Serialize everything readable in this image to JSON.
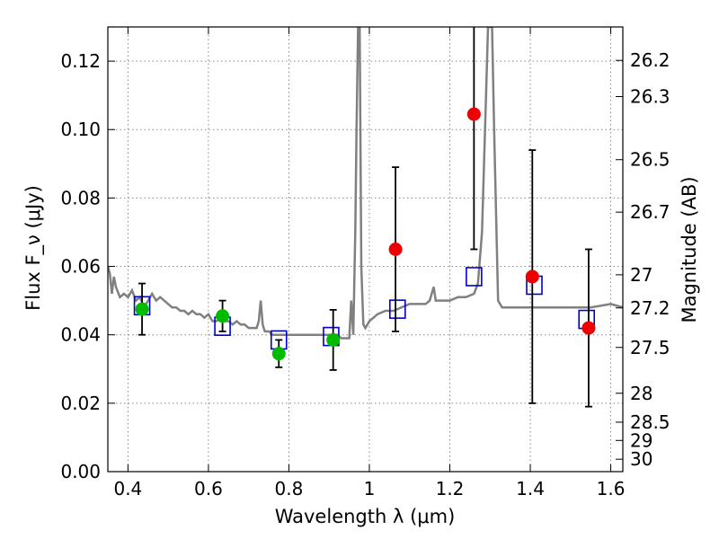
{
  "chart_data": {
    "type": "scatter",
    "xlabel": "Wavelength λ (μm)",
    "ylabel": "Flux F_ν (μJy)",
    "y2label": "Magnitude (AB)",
    "xlim": [
      0.35,
      1.63
    ],
    "ylim": [
      0.0,
      0.13
    ],
    "xticks": [
      0.4,
      0.6,
      0.8,
      1.0,
      1.2,
      1.4,
      1.6
    ],
    "xtick_labels": [
      "0.4",
      "0.6",
      "0.8",
      "1",
      "1.2",
      "1.4",
      "1.6"
    ],
    "yticks": [
      0.0,
      0.02,
      0.04,
      0.06,
      0.08,
      0.1,
      0.12
    ],
    "ytick_labels": [
      "0.00",
      "0.02",
      "0.04",
      "0.06",
      "0.08",
      "0.10",
      "0.12"
    ],
    "magnitude_ticks": [
      "26.2",
      "26.3",
      "26.5",
      "26.7",
      "27",
      "27.2",
      "27.5",
      "28",
      "28.5",
      "29",
      "30"
    ],
    "grid": true,
    "colors": {
      "template": "#808080",
      "model_box": "#0000cc",
      "optical_point": "#00bb00",
      "nir_point": "#ee0000",
      "errorbar": "#000000"
    },
    "template_spectrum": [
      [
        0.35,
        0.06
      ],
      [
        0.355,
        0.058
      ],
      [
        0.36,
        0.052
      ],
      [
        0.365,
        0.057
      ],
      [
        0.37,
        0.054
      ],
      [
        0.38,
        0.051
      ],
      [
        0.39,
        0.052
      ],
      [
        0.4,
        0.051
      ],
      [
        0.41,
        0.053
      ],
      [
        0.42,
        0.05
      ],
      [
        0.43,
        0.051
      ],
      [
        0.44,
        0.048
      ],
      [
        0.45,
        0.05
      ],
      [
        0.46,
        0.052
      ],
      [
        0.47,
        0.05
      ],
      [
        0.48,
        0.051
      ],
      [
        0.49,
        0.05
      ],
      [
        0.5,
        0.049
      ],
      [
        0.51,
        0.048
      ],
      [
        0.52,
        0.048
      ],
      [
        0.53,
        0.047
      ],
      [
        0.54,
        0.047
      ],
      [
        0.55,
        0.046
      ],
      [
        0.56,
        0.047
      ],
      [
        0.57,
        0.046
      ],
      [
        0.58,
        0.046
      ],
      [
        0.59,
        0.045
      ],
      [
        0.6,
        0.046
      ],
      [
        0.61,
        0.044
      ],
      [
        0.62,
        0.044
      ],
      [
        0.63,
        0.045
      ],
      [
        0.64,
        0.044
      ],
      [
        0.65,
        0.044
      ],
      [
        0.66,
        0.043
      ],
      [
        0.67,
        0.044
      ],
      [
        0.68,
        0.043
      ],
      [
        0.69,
        0.043
      ],
      [
        0.7,
        0.042
      ],
      [
        0.71,
        0.042
      ],
      [
        0.72,
        0.042
      ],
      [
        0.725,
        0.044
      ],
      [
        0.73,
        0.05
      ],
      [
        0.735,
        0.043
      ],
      [
        0.74,
        0.041
      ],
      [
        0.75,
        0.041
      ],
      [
        0.76,
        0.04
      ],
      [
        0.77,
        0.04
      ],
      [
        0.78,
        0.04
      ],
      [
        0.79,
        0.04
      ],
      [
        0.8,
        0.04
      ],
      [
        0.81,
        0.04
      ],
      [
        0.82,
        0.04
      ],
      [
        0.83,
        0.04
      ],
      [
        0.84,
        0.04
      ],
      [
        0.85,
        0.04
      ],
      [
        0.86,
        0.04
      ],
      [
        0.87,
        0.04
      ],
      [
        0.88,
        0.04
      ],
      [
        0.89,
        0.04
      ],
      [
        0.9,
        0.04
      ],
      [
        0.91,
        0.04
      ],
      [
        0.92,
        0.04
      ],
      [
        0.93,
        0.039
      ],
      [
        0.94,
        0.039
      ],
      [
        0.95,
        0.039
      ],
      [
        0.955,
        0.05
      ],
      [
        0.96,
        0.04
      ],
      [
        0.965,
        0.07
      ],
      [
        0.968,
        0.1
      ],
      [
        0.972,
        0.13
      ],
      [
        0.976,
        0.13
      ],
      [
        0.98,
        0.06
      ],
      [
        0.985,
        0.043
      ],
      [
        0.99,
        0.042
      ],
      [
        1.0,
        0.044
      ],
      [
        1.01,
        0.045
      ],
      [
        1.02,
        0.046
      ],
      [
        1.04,
        0.047
      ],
      [
        1.06,
        0.047
      ],
      [
        1.08,
        0.048
      ],
      [
        1.1,
        0.049
      ],
      [
        1.12,
        0.049
      ],
      [
        1.14,
        0.049
      ],
      [
        1.15,
        0.05
      ],
      [
        1.16,
        0.054
      ],
      [
        1.165,
        0.05
      ],
      [
        1.18,
        0.05
      ],
      [
        1.2,
        0.05
      ],
      [
        1.22,
        0.051
      ],
      [
        1.24,
        0.051
      ],
      [
        1.26,
        0.052
      ],
      [
        1.27,
        0.055
      ],
      [
        1.28,
        0.07
      ],
      [
        1.29,
        0.11
      ],
      [
        1.295,
        0.13
      ],
      [
        1.305,
        0.13
      ],
      [
        1.31,
        0.1
      ],
      [
        1.32,
        0.05
      ],
      [
        1.33,
        0.048
      ],
      [
        1.35,
        0.048
      ],
      [
        1.4,
        0.048
      ],
      [
        1.45,
        0.048
      ],
      [
        1.5,
        0.048
      ],
      [
        1.55,
        0.048
      ],
      [
        1.6,
        0.049
      ],
      [
        1.63,
        0.048
      ]
    ],
    "series": [
      {
        "marker": "square",
        "points": [
          {
            "x": 0.435,
            "y": 0.0485
          },
          {
            "x": 0.635,
            "y": 0.0425
          },
          {
            "x": 0.775,
            "y": 0.0385
          },
          {
            "x": 0.905,
            "y": 0.0395
          },
          {
            "x": 1.07,
            "y": 0.0475
          },
          {
            "x": 1.26,
            "y": 0.057
          },
          {
            "x": 1.41,
            "y": 0.0545
          },
          {
            "x": 1.54,
            "y": 0.0445
          }
        ]
      },
      {
        "marker": "circle",
        "points": [
          {
            "x": 0.435,
            "y": 0.0475,
            "err": 0.0075
          },
          {
            "x": 0.635,
            "y": 0.0455,
            "err": 0.0045
          },
          {
            "x": 0.775,
            "y": 0.0345,
            "err": 0.004
          },
          {
            "x": 0.91,
            "y": 0.0385,
            "err": 0.0088
          }
        ]
      },
      {
        "marker": "circle",
        "points": [
          {
            "x": 1.065,
            "y": 0.065,
            "err": 0.024
          },
          {
            "x": 1.26,
            "y": 0.1045,
            "err": 0.0395
          },
          {
            "x": 1.405,
            "y": 0.057,
            "err": 0.037
          },
          {
            "x": 1.545,
            "y": 0.042,
            "err": 0.023
          }
        ]
      }
    ]
  }
}
